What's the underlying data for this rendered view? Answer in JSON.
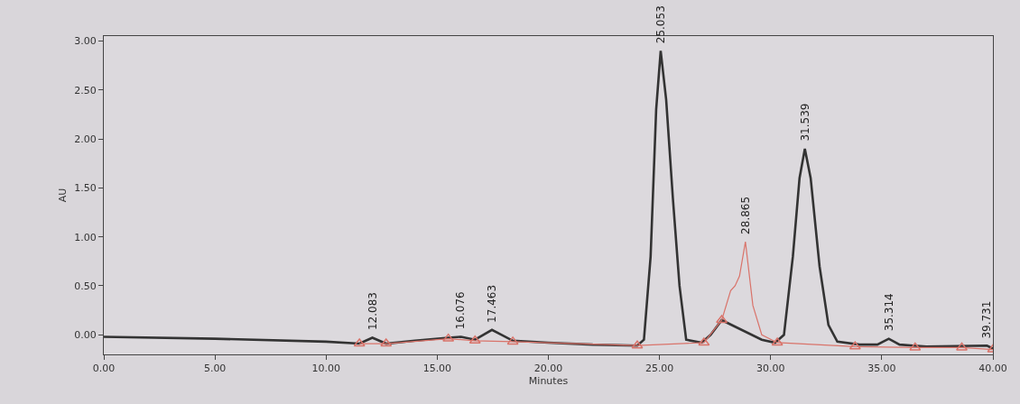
{
  "chart_data": {
    "type": "line",
    "xlabel": "Minutes",
    "ylabel": "AU",
    "xlim": [
      0,
      40
    ],
    "ylim": [
      -0.2,
      3.05
    ],
    "xticks": [
      {
        "value": 0,
        "label": "0.00"
      },
      {
        "value": 5,
        "label": "5.00"
      },
      {
        "value": 10,
        "label": "10.00"
      },
      {
        "value": 15,
        "label": "15.00"
      },
      {
        "value": 20,
        "label": "20.00"
      },
      {
        "value": 25,
        "label": "25.00"
      },
      {
        "value": 30,
        "label": "30.00"
      },
      {
        "value": 35,
        "label": "35.00"
      },
      {
        "value": 40,
        "label": "40.00"
      }
    ],
    "yticks": [
      {
        "value": 0,
        "label": "0.00"
      },
      {
        "value": 0.5,
        "label": "0.50"
      },
      {
        "value": 1,
        "label": "1.00"
      },
      {
        "value": 1.5,
        "label": "1.50"
      },
      {
        "value": 2,
        "label": "2.00"
      },
      {
        "value": 2.5,
        "label": "2.50"
      },
      {
        "value": 3,
        "label": "3.00"
      }
    ],
    "grid": false,
    "series": [
      {
        "type": "line",
        "color": "#333333",
        "marker": "none",
        "x": [
          0,
          5,
          10,
          11.5,
          12.083,
          12.7,
          14,
          15.5,
          16.076,
          16.7,
          17.463,
          18.4,
          20,
          22,
          24,
          24.3,
          24.6,
          24.85,
          25.053,
          25.3,
          25.6,
          25.9,
          26.2,
          26.9,
          27.3,
          27.8,
          29.6,
          30.2,
          30.6,
          31.0,
          31.3,
          31.539,
          31.8,
          32.2,
          32.6,
          33.0,
          34,
          34.8,
          35.314,
          35.8,
          37,
          39.731,
          40
        ],
        "values": [
          -0.02,
          -0.04,
          -0.07,
          -0.09,
          -0.03,
          -0.09,
          -0.06,
          -0.03,
          -0.02,
          -0.05,
          0.05,
          -0.06,
          -0.08,
          -0.1,
          -0.11,
          -0.05,
          0.8,
          2.3,
          2.9,
          2.4,
          1.4,
          0.5,
          -0.05,
          -0.08,
          0.0,
          0.15,
          -0.05,
          -0.08,
          0.0,
          0.8,
          1.6,
          1.9,
          1.6,
          0.7,
          0.1,
          -0.07,
          -0.1,
          -0.1,
          -0.04,
          -0.1,
          -0.12,
          -0.11,
          -0.14
        ]
      },
      {
        "type": "line",
        "color": "#d9736a",
        "marker": "none",
        "x": [
          11.5,
          12.7,
          15.5,
          16.7,
          18.4,
          24,
          27,
          27.8,
          28.2,
          28.4,
          28.6,
          28.865,
          29.2,
          29.6,
          30.3,
          33.8,
          36.5,
          38.6,
          40
        ],
        "values": [
          -0.09,
          -0.09,
          -0.04,
          -0.06,
          -0.07,
          -0.11,
          -0.08,
          0.15,
          0.45,
          0.5,
          0.6,
          0.95,
          0.3,
          0.0,
          -0.08,
          -0.12,
          -0.13,
          -0.13,
          -0.15
        ]
      },
      {
        "type": "scatter",
        "color": "#d9736a",
        "marker": "triangle",
        "x": [
          11.5,
          12.7,
          15.5,
          16.7,
          18.4,
          24,
          27,
          27.8,
          30.3,
          33.8,
          36.5,
          38.6,
          40
        ],
        "values": [
          -0.09,
          -0.09,
          -0.04,
          -0.06,
          -0.07,
          -0.11,
          -0.08,
          0.15,
          -0.08,
          -0.12,
          -0.13,
          -0.13,
          -0.15
        ]
      }
    ],
    "annotations": [
      {
        "text": "12.083",
        "x": 12.083,
        "y": -0.03
      },
      {
        "text": "16.076",
        "x": 16.076,
        "y": -0.02
      },
      {
        "text": "17.463",
        "x": 17.463,
        "y": 0.05
      },
      {
        "text": "25.053",
        "x": 25.053,
        "y": 2.9
      },
      {
        "text": "28.865",
        "x": 28.865,
        "y": 0.95
      },
      {
        "text": "31.539",
        "x": 31.539,
        "y": 1.9
      },
      {
        "text": "35.314",
        "x": 35.314,
        "y": -0.04
      },
      {
        "text": "39.731",
        "x": 39.731,
        "y": -0.11
      }
    ]
  }
}
